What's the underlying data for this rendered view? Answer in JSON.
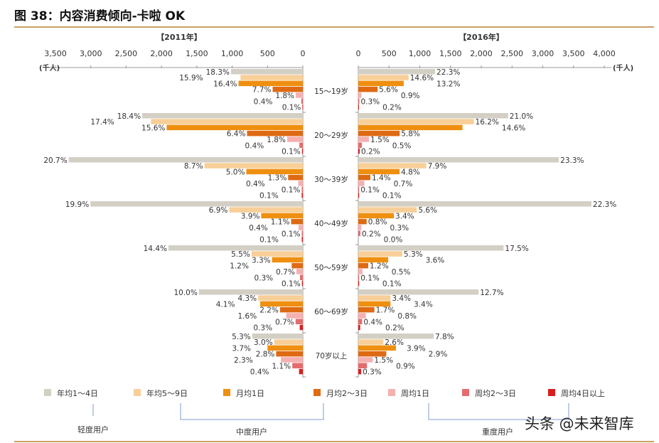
{
  "title": "图 38：内容消费倾向-卡啦 OK",
  "watermark": "头条 @未来智库",
  "chart_data": {
    "type": "bar",
    "orientation": "horizontal-butterfly",
    "unit_label": "(千人)",
    "categories": [
      "15～19岁",
      "20～29岁",
      "30～39岁",
      "40～49岁",
      "50～59岁",
      "60～69岁",
      "70岁以上"
    ],
    "series_names": [
      "年均1～4日",
      "年均5～9日",
      "月均1日",
      "月均2～3日",
      "周均1日",
      "周均2～3日",
      "周均4日以上"
    ],
    "colors": [
      "#d3cfc4",
      "#f8cf98",
      "#ef8f10",
      "#de6a14",
      "#f5b0b0",
      "#e46c6c",
      "#d81e1e"
    ],
    "legend_groups": [
      {
        "label": "轻度用户",
        "series": [
          "年均1～4日"
        ]
      },
      {
        "label": "中度用户",
        "series": [
          "年均5～9日",
          "月均1日",
          "月均2～3日"
        ]
      },
      {
        "label": "重度用户",
        "series": [
          "周均1日",
          "周均2～3日",
          "周均4日以上"
        ]
      }
    ],
    "panels": [
      {
        "title": "【2011年】",
        "xlim": [
          0,
          3500
        ],
        "direction": "left",
        "ticks": [
          "3,500",
          "3,000",
          "2,500",
          "2,000",
          "1,500",
          "1,000",
          "500",
          "0"
        ],
        "tick_values": [
          3500,
          3000,
          2500,
          2000,
          1500,
          1000,
          500,
          0
        ],
        "values": [
          [
            1016,
            882,
            910,
            427,
            100,
            22,
            6
          ],
          [
            2272,
            2149,
            1927,
            790,
            222,
            49,
            12
          ],
          [
            3312,
            1392,
            800,
            208,
            64,
            16,
            16
          ],
          [
            3005,
            1042,
            589,
            166,
            60,
            15,
            15
          ],
          [
            1901,
            726,
            436,
            158,
            92,
            40,
            13
          ],
          [
            1470,
            632,
            603,
            323,
            235,
            103,
            44
          ],
          [
            716,
            405,
            500,
            378,
            311,
            149,
            54
          ]
        ],
        "labels": [
          [
            "18.3%",
            "15.9%",
            "16.4%",
            "7.7%",
            "1.8%",
            "0.4%",
            "0.1%"
          ],
          [
            "18.4%",
            "17.4%",
            "15.6%",
            "6.4%",
            "1.8%",
            "0.4%",
            "0.1%"
          ],
          [
            "20.7%",
            "8.7%",
            "5.0%",
            "1.3%",
            "0.4%",
            "0.1%",
            "0.1%"
          ],
          [
            "19.9%",
            "6.9%",
            "3.9%",
            "1.1%",
            "0.4%",
            "0.1%",
            "0.1%"
          ],
          [
            "14.4%",
            "5.5%",
            "3.3%",
            "1.2%",
            "0.7%",
            "0.3%",
            "0.1%"
          ],
          [
            "10.0%",
            "4.3%",
            "4.1%",
            "2.2%",
            "1.6%",
            "0.7%",
            "0.3%"
          ],
          [
            "5.3%",
            "3.0%",
            "3.7%",
            "2.8%",
            "2.3%",
            "1.1%",
            "0.4%"
          ]
        ]
      },
      {
        "title": "【2016年】",
        "xlim": [
          0,
          4000
        ],
        "direction": "right",
        "ticks": [
          "0",
          "500",
          "1,000",
          "1,500",
          "2,000",
          "2,500",
          "3,000",
          "3,500",
          "4,000"
        ],
        "tick_values": [
          0,
          500,
          1000,
          1500,
          2000,
          2500,
          3000,
          3500,
          4000
        ],
        "values": [
          [
            1249,
            818,
            739,
            314,
            50,
            17,
            11
          ],
          [
            2436,
            1879,
            1694,
            673,
            174,
            58,
            23
          ],
          [
            3262,
            1106,
            672,
            196,
            98,
            14,
            14
          ],
          [
            3791,
            952,
            578,
            136,
            51,
            34,
            0
          ],
          [
            2363,
            716,
            486,
            162,
            68,
            14,
            14
          ],
          [
            1956,
            524,
            524,
            262,
            123,
            62,
            31
          ],
          [
            1225,
            408,
            612,
            455,
            236,
            141,
            47
          ]
        ],
        "labels": [
          [
            "22.3%",
            "14.6%",
            "13.2%",
            "5.6%",
            "0.9%",
            "0.3%",
            "0.2%"
          ],
          [
            "21.0%",
            "16.2%",
            "14.6%",
            "5.8%",
            "1.5%",
            "0.5%",
            "0.2%"
          ],
          [
            "23.3%",
            "7.9%",
            "4.8%",
            "1.4%",
            "0.7%",
            "0.1%",
            "0.1%"
          ],
          [
            "22.3%",
            "5.6%",
            "3.4%",
            "0.8%",
            "0.3%",
            "0.2%",
            "0.0%"
          ],
          [
            "17.5%",
            "5.3%",
            "3.6%",
            "1.2%",
            "0.5%",
            "0.1%",
            "0.1%"
          ],
          [
            "12.7%",
            "3.4%",
            "3.4%",
            "1.7%",
            "0.8%",
            "0.4%",
            "0.2%"
          ],
          [
            "7.8%",
            "2.6%",
            "3.9%",
            "2.9%",
            "1.5%",
            "0.9%",
            "0.3%"
          ]
        ]
      }
    ]
  }
}
